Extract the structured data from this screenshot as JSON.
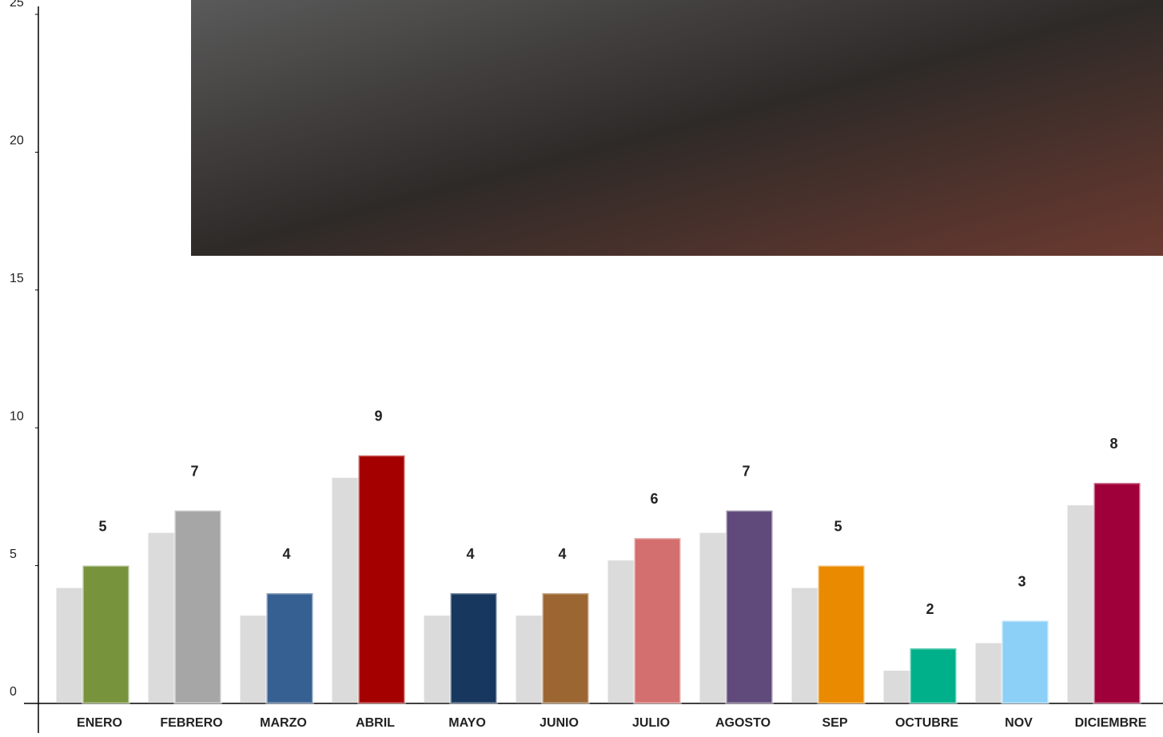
{
  "chart_data": {
    "type": "bar",
    "categories": [
      "ENERO",
      "FEBRERO",
      "MARZO",
      "ABRIL",
      "MAYO",
      "JUNIO",
      "JULIO",
      "AGOSTO",
      "SEP",
      "OCTUBRE",
      "NOV",
      "DICIEMBRE"
    ],
    "values": [
      5,
      7,
      4,
      9,
      4,
      4,
      6,
      7,
      5,
      2,
      3,
      8
    ],
    "colors": [
      "#77933c",
      "#a6a6a6",
      "#376092",
      "#a50000",
      "#17375e",
      "#9c6633",
      "#d46f6f",
      "#604a7b",
      "#e98a00",
      "#00b08a",
      "#8ccff7",
      "#a0003a"
    ],
    "ylim": [
      0,
      25
    ],
    "yticks": [
      0,
      5,
      10,
      15,
      20,
      25
    ]
  }
}
